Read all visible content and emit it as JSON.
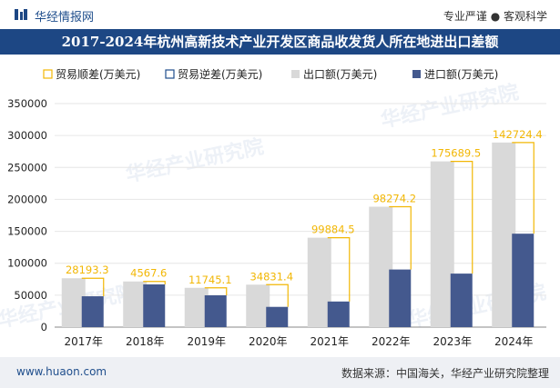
{
  "header": {
    "brand": "华经情报网",
    "tagline": "专业严谨 ● 客观科学"
  },
  "footer": {
    "website": "www.huaon.com",
    "source": "数据来源：中国海关，华经产业研究院整理"
  },
  "watermark": "华经产业研究院",
  "colors": {
    "title_bg": "#1d4784",
    "export": "#d9d9d9",
    "import": "#44598e",
    "surplus": "#f2b705",
    "deficit": "#1f4e8c"
  },
  "chart_data": {
    "type": "bar",
    "title": "2017-2024年杭州高新技术产业开发区商品收发货人所在地进出口差额",
    "categories": [
      "2017年",
      "2018年",
      "2019年",
      "2020年",
      "2021年",
      "2022年",
      "2023年",
      "2024年"
    ],
    "ylim": [
      0,
      350000
    ],
    "yticks": [
      "0",
      "50000",
      "100000",
      "150000",
      "200000",
      "250000",
      "300000",
      "350000"
    ],
    "series": [
      {
        "name": "贸易顺差(万美元)",
        "kind": "surplus",
        "values": [
          28193.3,
          4567.6,
          11745.1,
          34831.4,
          99884.5,
          98274.2,
          175689.5,
          142724.4
        ],
        "labels": [
          "28193.3",
          "4567.6",
          "11745.1",
          "34831.4",
          "99884.5",
          "98274.2",
          "175689.5",
          "142724.4"
        ]
      },
      {
        "name": "贸易逆差(万美元)",
        "kind": "deficit",
        "values": [
          0,
          0,
          0,
          0,
          0,
          0,
          0,
          0
        ]
      },
      {
        "name": "出口额(万美元)",
        "kind": "export",
        "values": [
          76500,
          71500,
          61500,
          66500,
          140000,
          188500,
          259500,
          289000
        ]
      },
      {
        "name": "进口额(万美元)",
        "kind": "import",
        "values": [
          48300,
          66900,
          49800,
          31700,
          40100,
          90200,
          83800,
          146300
        ]
      }
    ],
    "legend_position": "top",
    "grid": true
  }
}
